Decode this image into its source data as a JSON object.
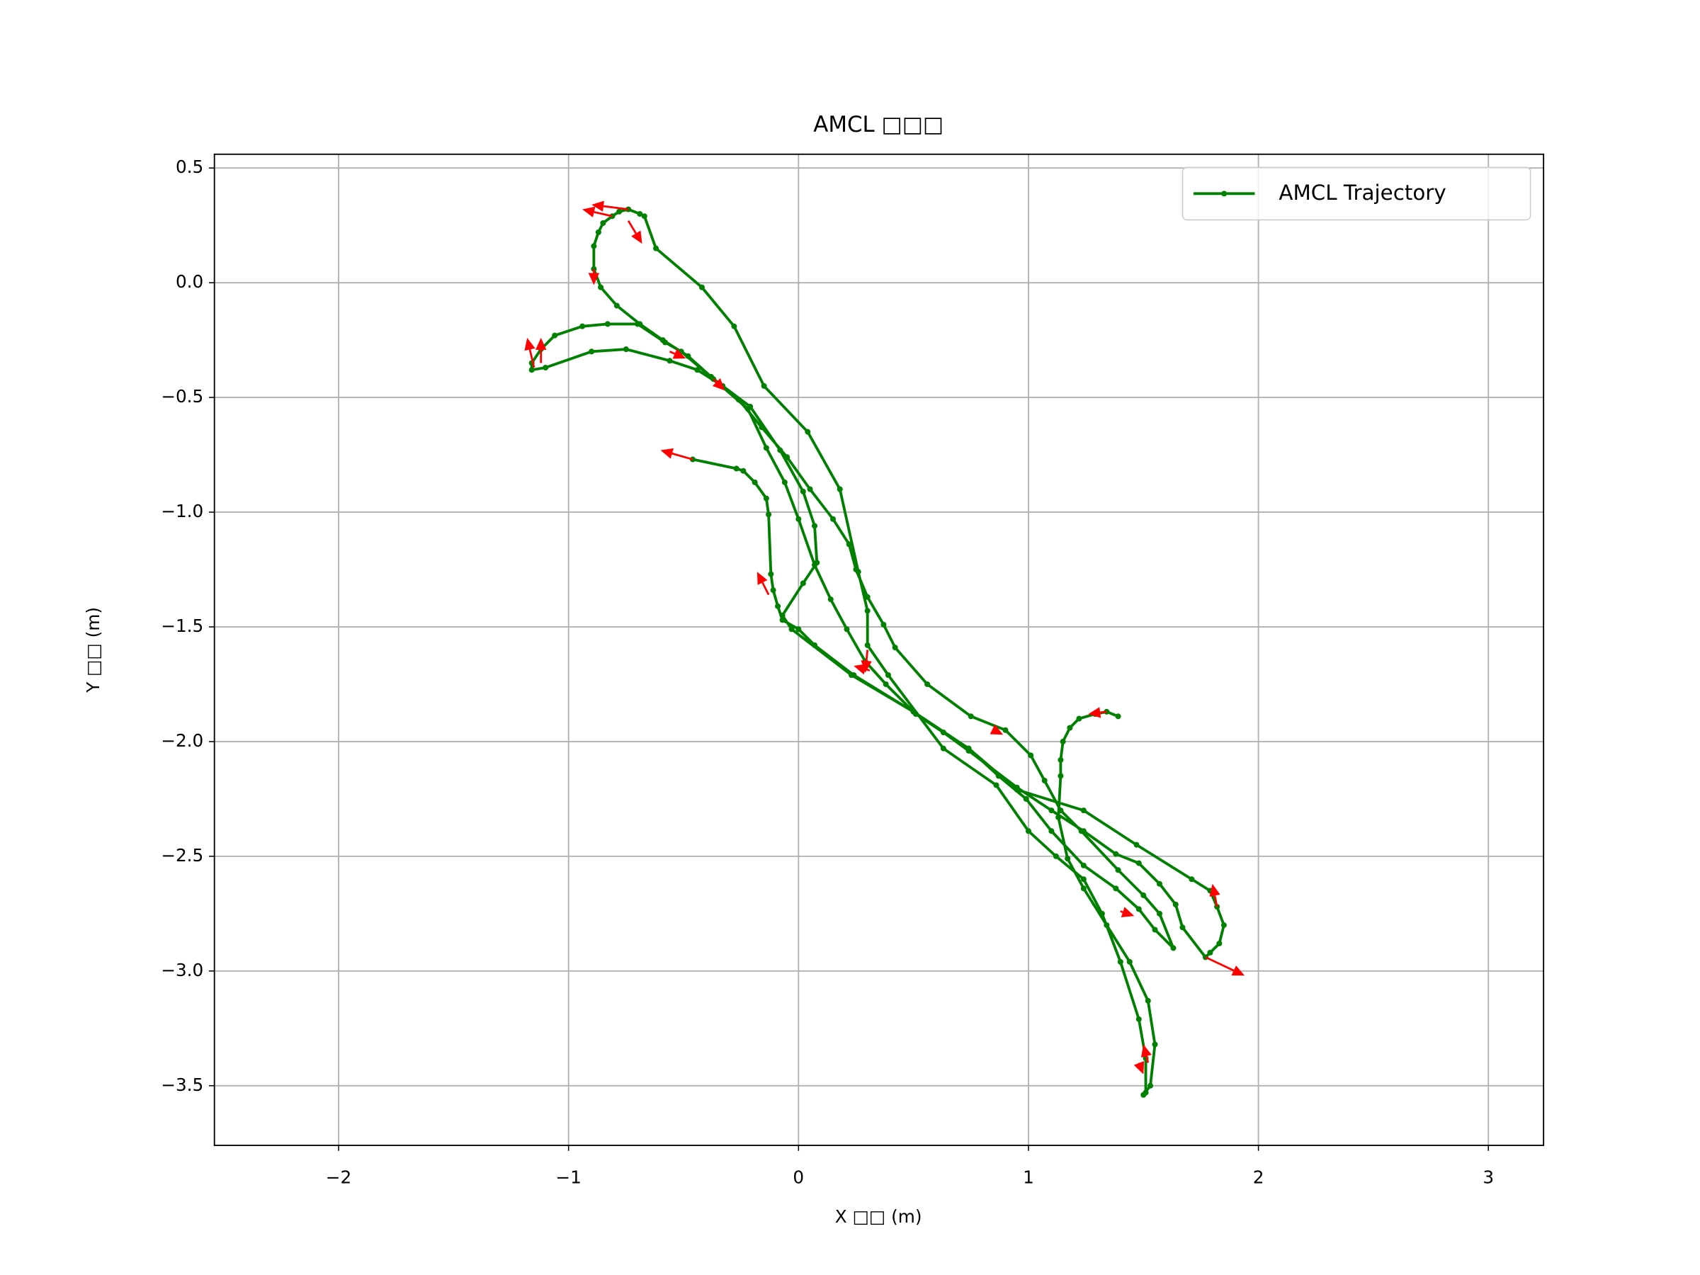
{
  "chart_data": {
    "type": "line",
    "title": "AMCL □□□",
    "x_label": "X □□ (m)",
    "y_label": "Y □□ (m)",
    "xlim": [
      -2.54,
      3.24
    ],
    "ylim": [
      -3.76,
      0.56
    ],
    "xticks": [
      {
        "value": -2,
        "label": "−2"
      },
      {
        "value": -1,
        "label": "−1"
      },
      0,
      1,
      2,
      3
    ],
    "yticks": [
      0.5,
      {
        "value": 0,
        "label": "0.0"
      },
      {
        "value": -0.5,
        "label": "−0.5"
      },
      {
        "value": -1.0,
        "label": "−1.0"
      },
      {
        "value": -1.5,
        "label": "−1.5"
      },
      {
        "value": -2.0,
        "label": "−2.0"
      },
      {
        "value": -2.5,
        "label": "−2.5"
      },
      {
        "value": -3.0,
        "label": "−3.0"
      },
      {
        "value": -3.5,
        "label": "−3.5"
      }
    ],
    "grid": true,
    "legend": "upper right",
    "series": [
      {
        "name": "AMCL Trajectory",
        "color": "#008000",
        "x": [
          -0.46,
          -0.27,
          -0.24,
          -0.19,
          -0.14,
          -0.13,
          -0.12,
          -0.11,
          -0.09,
          -0.07,
          0.0,
          0.07,
          0.24,
          0.5,
          0.74,
          0.95,
          1.24,
          1.47,
          1.71,
          1.79,
          1.82,
          1.85,
          1.83,
          1.79,
          1.77,
          1.67,
          1.64,
          1.57,
          1.48,
          1.38,
          1.24,
          1.1,
          0.95,
          0.74,
          0.63,
          0.51,
          0.38,
          0.29,
          0.21,
          0.14,
          0.07,
          0.0,
          -0.06,
          -0.14,
          -0.22,
          -0.37,
          -0.51,
          -0.58,
          -0.7,
          -0.83,
          -0.94,
          -1.06,
          -1.12,
          -1.16,
          -1.16,
          -1.1,
          -0.9,
          -0.75,
          -0.56,
          -0.44,
          -0.33,
          -0.21,
          -0.08,
          0.02,
          0.07,
          0.08,
          0.02,
          -0.07,
          -0.03,
          0.23,
          0.5,
          0.74,
          0.87,
          0.99,
          1.1,
          1.24,
          1.38,
          1.48,
          1.55,
          1.63,
          1.57,
          1.5,
          1.39,
          1.23,
          1.14,
          1.07,
          1.01,
          0.9,
          0.75,
          0.56,
          0.42,
          0.37,
          0.3,
          0.25,
          0.22,
          0.15,
          0.05,
          -0.05,
          -0.16,
          -0.26,
          -0.38,
          -0.48,
          -0.59,
          -0.69,
          -0.79,
          -0.86,
          -0.89,
          -0.89,
          -0.87,
          -0.85,
          -0.81,
          -0.78,
          -0.74,
          -0.69,
          -0.67,
          -0.62,
          -0.42,
          -0.28,
          -0.15,
          0.04,
          0.18,
          0.26,
          0.3,
          0.3,
          0.39,
          0.63,
          0.86,
          1.0,
          1.12,
          1.24,
          1.32,
          1.4,
          1.48,
          1.51,
          1.51,
          1.5,
          1.53,
          1.55,
          1.52,
          1.44,
          1.34,
          1.24,
          1.17,
          1.13,
          1.14,
          1.14,
          1.15,
          1.18,
          1.22,
          1.29,
          1.34,
          1.39
        ],
        "values": [
          -0.77,
          -0.81,
          -0.82,
          -0.87,
          -0.94,
          -1.01,
          -1.27,
          -1.34,
          -1.41,
          -1.47,
          -1.51,
          -1.58,
          -1.71,
          -1.87,
          -2.03,
          -2.21,
          -2.3,
          -2.45,
          -2.6,
          -2.65,
          -2.72,
          -2.8,
          -2.88,
          -2.92,
          -2.94,
          -2.81,
          -2.71,
          -2.62,
          -2.53,
          -2.49,
          -2.39,
          -2.3,
          -2.2,
          -2.04,
          -1.96,
          -1.88,
          -1.75,
          -1.65,
          -1.51,
          -1.38,
          -1.23,
          -1.03,
          -0.87,
          -0.72,
          -0.55,
          -0.42,
          -0.3,
          -0.26,
          -0.18,
          -0.18,
          -0.19,
          -0.23,
          -0.29,
          -0.35,
          -0.38,
          -0.37,
          -0.3,
          -0.29,
          -0.34,
          -0.38,
          -0.45,
          -0.54,
          -0.73,
          -0.91,
          -1.06,
          -1.22,
          -1.31,
          -1.45,
          -1.51,
          -1.71,
          -1.87,
          -2.03,
          -2.15,
          -2.25,
          -2.39,
          -2.54,
          -2.64,
          -2.73,
          -2.82,
          -2.9,
          -2.75,
          -2.67,
          -2.56,
          -2.39,
          -2.3,
          -2.17,
          -2.06,
          -1.95,
          -1.89,
          -1.75,
          -1.59,
          -1.49,
          -1.37,
          -1.25,
          -1.14,
          -1.03,
          -0.9,
          -0.76,
          -0.63,
          -0.51,
          -0.41,
          -0.32,
          -0.25,
          -0.18,
          -0.1,
          -0.02,
          0.06,
          0.16,
          0.22,
          0.26,
          0.29,
          0.31,
          0.32,
          0.3,
          0.29,
          0.15,
          -0.02,
          -0.19,
          -0.45,
          -0.65,
          -0.9,
          -1.26,
          -1.43,
          -1.58,
          -1.71,
          -2.03,
          -2.19,
          -2.39,
          -2.5,
          -2.6,
          -2.75,
          -2.96,
          -3.21,
          -3.38,
          -3.53,
          -3.54,
          -3.5,
          -3.32,
          -3.13,
          -2.96,
          -2.8,
          -2.64,
          -2.51,
          -2.33,
          -2.15,
          -2.08,
          -2.0,
          -1.94,
          -1.9,
          -1.88,
          -1.87,
          -1.89
        ]
      }
    ],
    "arrows": {
      "color": "#ff0000",
      "x": [
        -0.46,
        -1.15,
        -1.12,
        -0.89,
        -0.81,
        -0.74,
        -0.74,
        -0.13,
        0.3,
        0.85,
        1.34,
        1.82,
        1.77,
        1.52,
        1.48,
        1.4,
        -0.37,
        -0.56,
        0.31
      ],
      "y": [
        -0.77,
        -0.37,
        -0.35,
        0.06,
        0.29,
        0.32,
        0.27,
        -1.36,
        -1.6,
        -1.95,
        -1.87,
        -2.72,
        -2.94,
        -3.4,
        -3.4,
        -2.74,
        -0.42,
        -0.3,
        -1.69
      ],
      "u": [
        -0.14,
        -0.03,
        0.0,
        0.0,
        -0.13,
        -0.16,
        0.06,
        -0.05,
        -0.01,
        0.04,
        -0.08,
        -0.02,
        0.17,
        -0.02,
        0.02,
        0.06,
        0.05,
        0.07,
        -0.07
      ],
      "v": [
        0.04,
        0.13,
        0.11,
        -0.07,
        0.03,
        0.02,
        -0.1,
        0.1,
        -0.1,
        -0.02,
        -0.01,
        0.1,
        -0.08,
        0.08,
        -0.05,
        -0.02,
        -0.05,
        -0.03,
        0.02
      ]
    }
  }
}
